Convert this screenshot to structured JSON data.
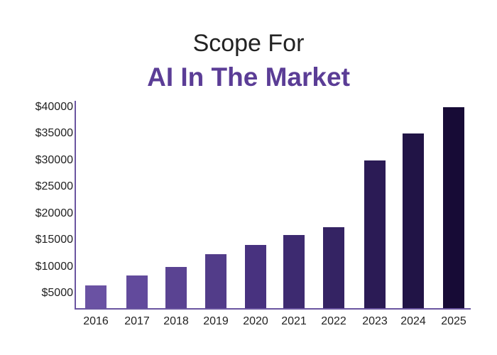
{
  "header": {
    "title_line1": "Scope For",
    "title_line2": "AI In The Market"
  },
  "colors": {
    "title_accent": "#5b3d96",
    "axis": "#6a55a0",
    "bar_start": "#6a52a3",
    "bar_end": "#140a30"
  },
  "chart_data": {
    "type": "bar",
    "title": "Scope For AI In The Market",
    "xlabel": "",
    "ylabel": "",
    "categories": [
      "2016",
      "2017",
      "2018",
      "2019",
      "2020",
      "2021",
      "2022",
      "2023",
      "2024",
      "2025"
    ],
    "values": [
      6500,
      8300,
      10000,
      12300,
      14100,
      16000,
      17400,
      30000,
      35000,
      40000
    ],
    "y_tick_labels": [
      "$40000",
      "$35000",
      "$30000",
      "$25000",
      "$20000",
      "$15000",
      "$10000",
      "$5000"
    ],
    "y_ticks": [
      40000,
      35000,
      30000,
      25000,
      20000,
      15000,
      10000,
      5000
    ],
    "ylim": [
      3000,
      41000
    ],
    "grid": false,
    "legend": null,
    "bar_colors": [
      "#6a52a3",
      "#624a9c",
      "#5a4392",
      "#523c89",
      "#48327f",
      "#3d2a70",
      "#342363",
      "#2b1b55",
      "#211446",
      "#170b36"
    ]
  }
}
